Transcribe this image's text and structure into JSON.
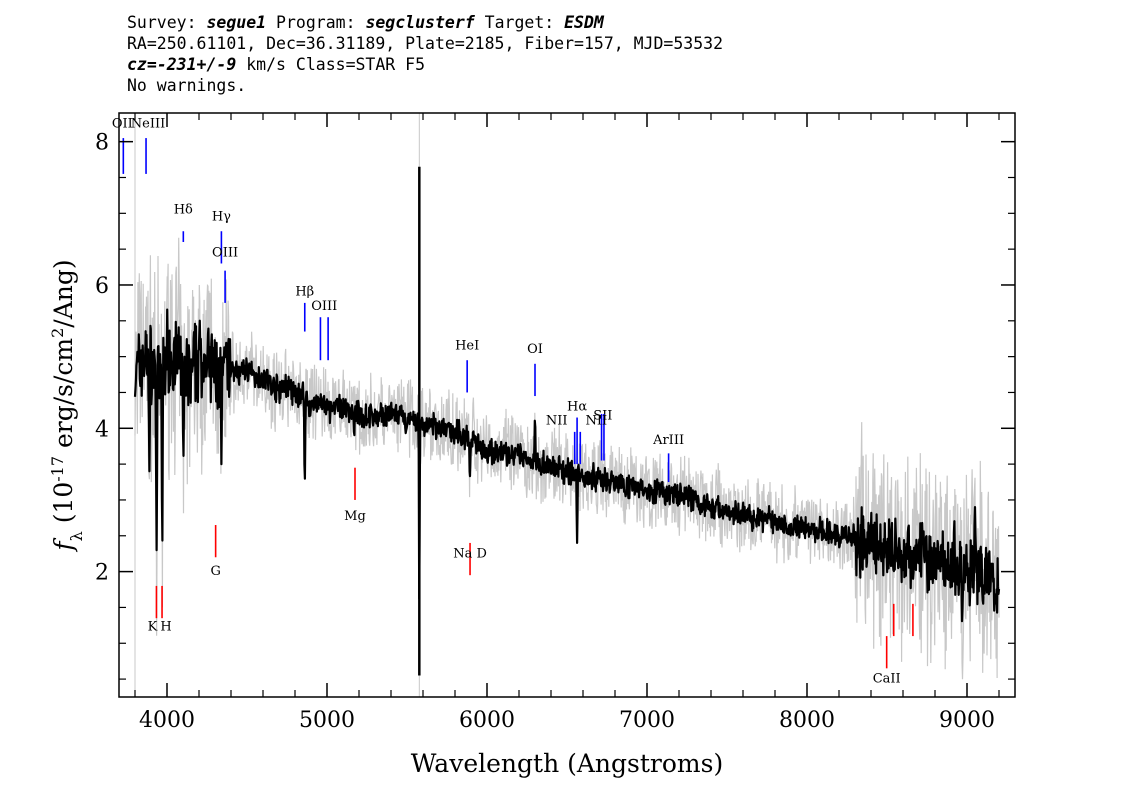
{
  "header": {
    "line1": {
      "survey_label": "Survey: ",
      "survey": "segue1",
      "program_label": " Program: ",
      "program": "segclusterf",
      "target_label": " Target: ",
      "target": "ESDM"
    },
    "line2": "RA=250.61101, Dec=36.31189, Plate=2185, Fiber=157, MJD=53532",
    "line3": {
      "cz_label": "cz=",
      "cz_value": "-231+/-9",
      "cz_rest": " km/s Class=STAR F5"
    },
    "line4": "No warnings."
  },
  "colors": {
    "flux": "#000000",
    "error_band": "#c8c8c8",
    "emission_line": "#0000ff",
    "absorption_line": "#ff0000",
    "frame": "#000000"
  },
  "chart_data": {
    "type": "line",
    "title": "",
    "xlabel": "Wavelength (Angstroms)",
    "ylabel": "f_λ (10^-17 erg/s/cm^2/Ang)",
    "xlim": [
      3700,
      9300
    ],
    "ylim": [
      0.25,
      8.4
    ],
    "xticks": [
      4000,
      5000,
      6000,
      7000,
      8000,
      9000
    ],
    "xtick_labels": [
      "4000",
      "5000",
      "6000",
      "7000",
      "8000",
      "9000"
    ],
    "yticks": [
      2,
      4,
      6,
      8
    ],
    "ytick_labels": [
      "2",
      "4",
      "6",
      "8"
    ],
    "grid": false,
    "legend": "none",
    "series": [
      {
        "role": "flux",
        "x": [
          3800,
          3850,
          3900,
          3950,
          4000,
          4050,
          4100,
          4150,
          4200,
          4250,
          4300,
          4350,
          4400,
          4450,
          4500,
          4550,
          4600,
          4650,
          4700,
          4750,
          4800,
          4850,
          4900,
          4950,
          5000,
          5100,
          5200,
          5300,
          5400,
          5500,
          5600,
          5700,
          5800,
          5900,
          6000,
          6100,
          6200,
          6300,
          6400,
          6500,
          6600,
          6700,
          6800,
          6900,
          7000,
          7100,
          7200,
          7300,
          7400,
          7500,
          7600,
          7700,
          7800,
          7900,
          8000,
          8100,
          8200,
          8300,
          8400,
          8500,
          8600,
          8700,
          8800,
          8900,
          9000,
          9100,
          9200
        ],
        "y": [
          4.7,
          5.0,
          4.9,
          4.6,
          5.1,
          5.0,
          4.8,
          4.7,
          5.0,
          4.9,
          4.8,
          4.75,
          4.85,
          4.75,
          4.85,
          4.7,
          4.75,
          4.6,
          4.55,
          4.6,
          4.45,
          4.5,
          4.3,
          4.4,
          4.25,
          4.3,
          4.2,
          4.15,
          4.2,
          4.1,
          4.05,
          4.0,
          3.95,
          3.85,
          3.7,
          3.65,
          3.6,
          3.55,
          3.45,
          3.4,
          3.35,
          3.3,
          3.25,
          3.2,
          3.15,
          3.1,
          3.05,
          3.0,
          2.9,
          2.85,
          2.8,
          2.75,
          2.7,
          2.65,
          2.6,
          2.55,
          2.5,
          2.45,
          2.4,
          2.35,
          2.3,
          2.25,
          2.2,
          2.05,
          2.0,
          1.95,
          1.75
        ]
      }
    ],
    "features": [
      {
        "wave": 3970,
        "flux": 2.0
      },
      {
        "wave": 3935,
        "flux": 2.3
      },
      {
        "wave": 3890,
        "flux": 3.4
      },
      {
        "wave": 4102,
        "flux": 3.4
      },
      {
        "wave": 4340,
        "flux": 3.5
      },
      {
        "wave": 4861,
        "flux": 3.05
      },
      {
        "wave": 5170,
        "flux": 3.85
      },
      {
        "wave": 5577,
        "flux": 7.6
      },
      {
        "wave": 5577,
        "flux": 0.55
      },
      {
        "wave": 5893,
        "flux": 3.2
      },
      {
        "wave": 6300,
        "flux": 4.2
      },
      {
        "wave": 6563,
        "flux": 2.4
      },
      {
        "wave": 8542,
        "flux": 1.9
      },
      {
        "wave": 8662,
        "flux": 1.9
      },
      {
        "wave": 8920,
        "flux": 2.8
      },
      {
        "wave": 8970,
        "flux": 1.1
      },
      {
        "wave": 9050,
        "flux": 2.9
      },
      {
        "wave": 9100,
        "flux": 1.4
      }
    ],
    "line_markers": [
      {
        "label": "OII",
        "wave": 3727,
        "top": 8.05,
        "bottom": 7.55,
        "label_flux": 8.2,
        "kind": "emission"
      },
      {
        "label": "NeIII",
        "wave": 3869,
        "top": 8.05,
        "bottom": 7.55,
        "label_flux": 8.2,
        "kind": "emission"
      },
      {
        "label": "Hδ",
        "wave": 4102,
        "top": 6.75,
        "bottom": 6.6,
        "label_flux": 7.0,
        "kind": "emission"
      },
      {
        "label": "Hγ",
        "wave": 4340,
        "top": 6.75,
        "bottom": 6.3,
        "label_flux": 6.9,
        "kind": "emission"
      },
      {
        "label": "OIII",
        "wave": 4363,
        "top": 6.2,
        "bottom": 5.75,
        "label_flux": 6.4,
        "kind": "emission"
      },
      {
        "label": "Hβ",
        "wave": 4861,
        "top": 5.75,
        "bottom": 5.35,
        "label_flux": 5.85,
        "kind": "emission"
      },
      {
        "label": "OIII",
        "wave": 4959,
        "top": 5.55,
        "bottom": 4.95,
        "label_flux": 5.65,
        "kind": "emission"
      },
      {
        "label": "OIII",
        "wave": 5007,
        "top": 5.55,
        "bottom": 4.95,
        "label_flux": 5.65,
        "kind": "emission_nolabel"
      },
      {
        "label": "HeI",
        "wave": 5876,
        "top": 4.95,
        "bottom": 4.5,
        "label_flux": 5.1,
        "kind": "emission"
      },
      {
        "label": "OI",
        "wave": 6300,
        "top": 4.9,
        "bottom": 4.45,
        "label_flux": 5.05,
        "kind": "emission"
      },
      {
        "label": "NII",
        "wave": 6548,
        "top": 3.95,
        "bottom": 3.5,
        "label_flux": 4.05,
        "kind": "emission"
      },
      {
        "label": "Hα",
        "wave": 6563,
        "top": 4.15,
        "bottom": 3.5,
        "label_flux": 4.25,
        "kind": "emission"
      },
      {
        "label": "NII",
        "wave": 6583,
        "top": 3.95,
        "bottom": 3.5,
        "label_flux": 4.05,
        "kind": "emission_nolabel"
      },
      {
        "label": "SII",
        "wave": 6716,
        "top": 4.2,
        "bottom": 3.55,
        "label_flux": 4.12,
        "kind": "emission"
      },
      {
        "label": "SII",
        "wave": 6731,
        "top": 4.2,
        "bottom": 3.55,
        "label_flux": 4.12,
        "kind": "emission_nolabel"
      },
      {
        "label": "ArIII",
        "wave": 7135,
        "top": 3.65,
        "bottom": 3.25,
        "label_flux": 3.78,
        "kind": "emission"
      },
      {
        "label": "K",
        "wave": 3934,
        "top": 1.8,
        "bottom": 1.35,
        "label_flux": 1.18,
        "kind": "absorption"
      },
      {
        "label": "H",
        "wave": 3969,
        "top": 1.8,
        "bottom": 1.35,
        "label_flux": 1.18,
        "kind": "absorption"
      },
      {
        "label": "G",
        "wave": 4304,
        "top": 2.65,
        "bottom": 2.2,
        "label_flux": 1.95,
        "kind": "absorption"
      },
      {
        "label": "Mg",
        "wave": 5175,
        "top": 3.45,
        "bottom": 3.0,
        "label_flux": 2.72,
        "kind": "absorption"
      },
      {
        "label": "Na D",
        "wave": 5894,
        "top": 2.4,
        "bottom": 1.95,
        "label_flux": 2.2,
        "kind": "absorption"
      },
      {
        "label": "CaII",
        "wave": 8498,
        "top": 1.1,
        "bottom": 0.65,
        "label_flux": 0.45,
        "kind": "absorption"
      },
      {
        "label": "CaII",
        "wave": 8542,
        "top": 1.55,
        "bottom": 1.1,
        "label_flux": 0.45,
        "kind": "absorption_nolabel"
      },
      {
        "label": "CaII",
        "wave": 8662,
        "top": 1.55,
        "bottom": 1.1,
        "label_flux": 0.45,
        "kind": "absorption_nolabel"
      }
    ]
  }
}
